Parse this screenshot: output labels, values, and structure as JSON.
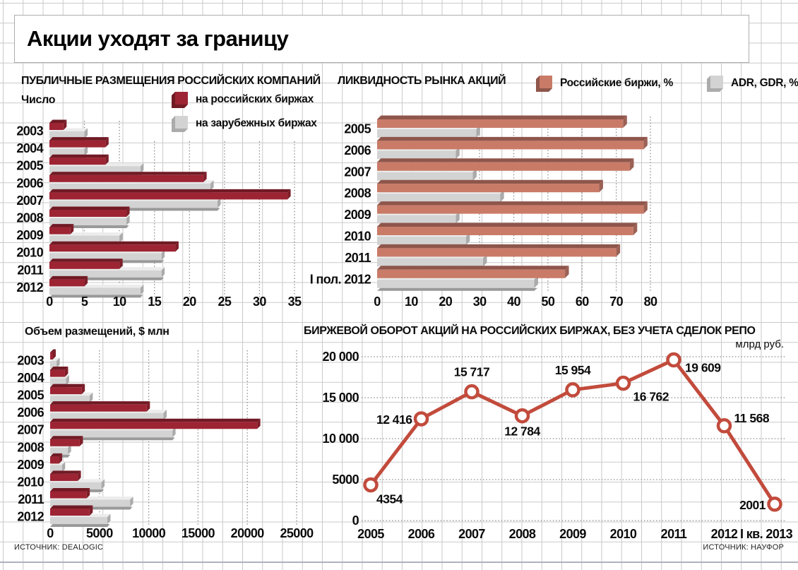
{
  "page": {
    "title": "Акции уходят за границу",
    "source_left": "ИСТОЧНИК: DEALOGIC",
    "source_right": "ИСТОЧНИК: НАУФОР"
  },
  "colors": {
    "dark_red": "#9D2433",
    "dark_red_shadow": "#701A24",
    "dark_red_side": "#7E1E29",
    "salmon": "#C97B68",
    "salmon_shadow": "#8F564B",
    "salmon_side": "#9B6155",
    "gray_bar": "#D3D3D3",
    "gray_bar_light": "#ECECEC",
    "gray_bar_side": "#ABABAB",
    "gray_bar_shadow": "#999999",
    "line_red": "#C24B3C",
    "paper_grid": "#C9C9C9",
    "dotted_grid": "#8C8C8C",
    "bottom_rule": "#AAB2BC"
  },
  "chart_data": [
    {
      "id": "public-offerings-count",
      "type": "bar",
      "orientation": "horizontal",
      "title": "ПУБЛИЧНЫЕ РАЗМЕЩЕНИЯ РОССИЙСКИХ КОМПАНИЙ",
      "ylabel": "Число",
      "categories": [
        "2003",
        "2004",
        "2005",
        "2006",
        "2007",
        "2008",
        "2009",
        "2010",
        "2011",
        "2012"
      ],
      "series": [
        {
          "name": "на российских биржах",
          "values": [
            2,
            8,
            8,
            22,
            34,
            11,
            3,
            18,
            10,
            5
          ]
        },
        {
          "name": "на зарубежных биржах",
          "values": [
            5,
            5,
            13,
            23,
            24,
            11,
            10,
            16,
            16,
            13
          ]
        }
      ],
      "xlim": [
        0,
        35
      ],
      "ticks": [
        0,
        5,
        10,
        15,
        20,
        25,
        30,
        35
      ],
      "tick_labels": [
        "0",
        "5",
        "10",
        "15",
        "20",
        "25",
        "30",
        "35"
      ],
      "grid": "dotted-vertical",
      "legend_position": "top-right"
    },
    {
      "id": "market-liquidity",
      "type": "bar",
      "orientation": "horizontal",
      "title": "ЛИКВИДНОСТЬ РЫНКА АКЦИЙ",
      "categories": [
        "2005",
        "2006",
        "2007",
        "2008",
        "2009",
        "2010",
        "2011",
        "I пол. 2012"
      ],
      "series": [
        {
          "name": "Российские биржи, %",
          "values": [
            72,
            78,
            74,
            65,
            78,
            75,
            70,
            55
          ]
        },
        {
          "name": "ADR, GDR, %",
          "values": [
            29,
            23,
            28,
            36,
            23,
            26,
            31,
            46
          ]
        }
      ],
      "xlim": [
        0,
        80
      ],
      "ticks": [
        0,
        10,
        20,
        30,
        40,
        50,
        60,
        70,
        80
      ],
      "tick_labels": [
        "0",
        "10",
        "20",
        "30",
        "40",
        "50",
        "60",
        "70",
        "80"
      ],
      "grid": "dotted-vertical",
      "legend_position": "top"
    },
    {
      "id": "placement-volume",
      "type": "bar",
      "orientation": "horizontal",
      "title": "Объем размещений, $ млн",
      "categories": [
        "2003",
        "2004",
        "2005",
        "2006",
        "2007",
        "2008",
        "2009",
        "2010",
        "2011",
        "2012"
      ],
      "series": [
        {
          "name": "на российских биржах",
          "values": [
            250,
            1500,
            3200,
            9800,
            21000,
            3000,
            900,
            2800,
            3700,
            4000
          ]
        },
        {
          "name": "на зарубежных биржах",
          "values": [
            650,
            1600,
            4000,
            11500,
            12400,
            1800,
            1200,
            5200,
            8100,
            5800
          ]
        }
      ],
      "xlim": [
        0,
        25000
      ],
      "ticks": [
        0,
        5000,
        10000,
        15000,
        20000,
        25000
      ],
      "tick_labels": [
        "0",
        "5000",
        "10000",
        "15000",
        "20000",
        "25000"
      ],
      "grid": "dotted-vertical"
    },
    {
      "id": "exchange-turnover",
      "type": "line",
      "title": "БИРЖЕВОЙ ОБОРОТ АКЦИЙ НА РОССИЙСКИХ БИРЖАХ, БЕЗ УЧЕТА СДЕЛОК РЕПО",
      "unit": "млрд руб.",
      "categories": [
        "2005",
        "2006",
        "2007",
        "2008",
        "2009",
        "2010",
        "2011",
        "2012",
        "I кв. 2013"
      ],
      "values": [
        4354,
        12416,
        15717,
        12784,
        15954,
        16762,
        19609,
        11568,
        2001
      ],
      "value_labels": [
        "4354",
        "12 416",
        "15 717",
        "12 784",
        "15 954",
        "16 762",
        "19 609",
        "11 568",
        "2001"
      ],
      "ylim": [
        0,
        20000
      ],
      "yticks": [
        0,
        5000,
        10000,
        15000,
        20000
      ],
      "ytick_labels": [
        "0",
        "5000",
        "10 000",
        "15 000",
        "20 000"
      ],
      "grid": "dotted-horizontal"
    }
  ]
}
